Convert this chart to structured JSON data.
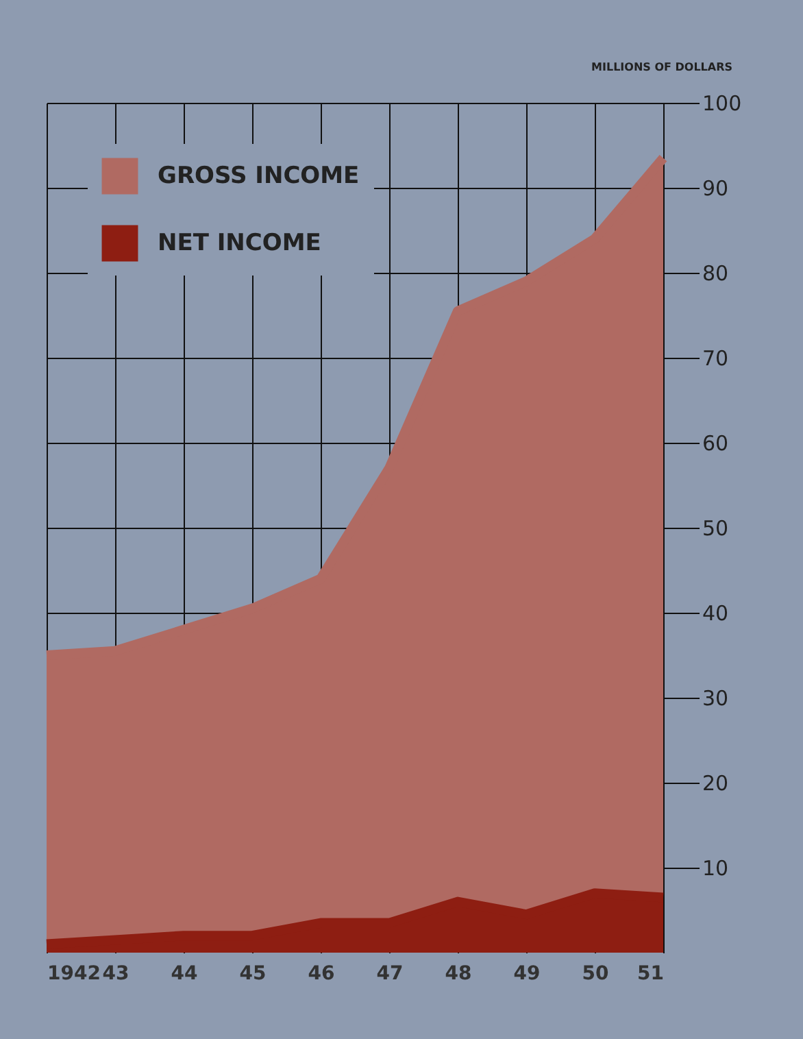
{
  "chart_data": {
    "type": "area",
    "ylabel": "MILLIONS OF DOLLARS",
    "categories": [
      "1942",
      "43",
      "44",
      "45",
      "46",
      "47",
      "48",
      "49",
      "50",
      "51"
    ],
    "series": [
      {
        "name": "GROSS INCOME",
        "color": "#b06a62",
        "values": [
          35,
          35.5,
          38,
          40.5,
          44,
          57,
          75.5,
          79,
          84,
          93.5
        ]
      },
      {
        "name": "NET INCOME",
        "color": "#8e1e12",
        "values": [
          1,
          1.5,
          2,
          2,
          3.5,
          3.5,
          6,
          4.5,
          7,
          6.5
        ]
      }
    ],
    "ylim": [
      0,
      100
    ],
    "yticks": [
      10,
      20,
      30,
      40,
      50,
      60,
      70,
      80,
      90,
      100
    ],
    "grid": true,
    "legend": "top left"
  }
}
